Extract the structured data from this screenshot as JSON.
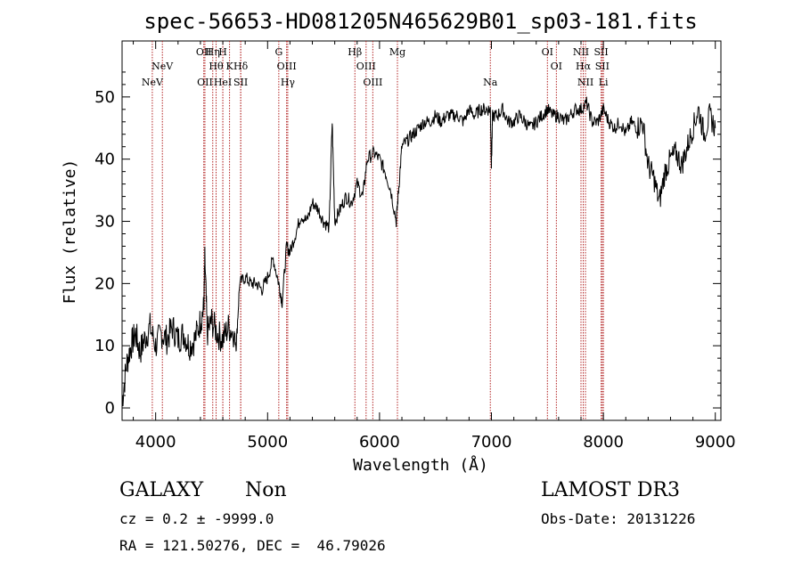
{
  "chart_data": {
    "type": "line",
    "title": "spec-56653-HD081205N465629B01_sp03-181.fits",
    "xlabel": "Wavelength (Å)",
    "ylabel": "Flux (relative)",
    "xlim": [
      3700,
      9050
    ],
    "ylim": [
      -2,
      59
    ],
    "xticks": [
      4000,
      5000,
      6000,
      7000,
      8000,
      9000
    ],
    "yticks": [
      0,
      10,
      20,
      30,
      40,
      50
    ],
    "series": [
      {
        "name": "spectrum",
        "x": [
          3700,
          3740,
          3780,
          3820,
          3860,
          3900,
          3950,
          4000,
          4050,
          4100,
          4150,
          4200,
          4250,
          4300,
          4350,
          4400,
          4430,
          4440,
          4460,
          4500,
          4550,
          4600,
          4650,
          4700,
          4720,
          4750,
          4800,
          4850,
          4900,
          4950,
          5000,
          5050,
          5100,
          5130,
          5170,
          5200,
          5250,
          5300,
          5350,
          5400,
          5450,
          5500,
          5550,
          5577,
          5600,
          5650,
          5700,
          5750,
          5800,
          5850,
          5890,
          5950,
          6000,
          6050,
          6100,
          6150,
          6170,
          6200,
          6250,
          6300,
          6350,
          6400,
          6450,
          6500,
          6550,
          6600,
          6650,
          6700,
          6750,
          6800,
          6850,
          6900,
          6950,
          6990,
          7000,
          7010,
          7050,
          7100,
          7150,
          7200,
          7250,
          7300,
          7350,
          7400,
          7450,
          7500,
          7550,
          7600,
          7650,
          7700,
          7750,
          7800,
          7850,
          7900,
          7950,
          8000,
          8050,
          8100,
          8150,
          8200,
          8250,
          8300,
          8350,
          8400,
          8450,
          8500,
          8550,
          8600,
          8650,
          8700,
          8750,
          8800,
          8850,
          8900,
          8950,
          9000
        ],
        "y": [
          1,
          7,
          10,
          12,
          9,
          11,
          13,
          10,
          12,
          11,
          13,
          11,
          12,
          10,
          11,
          14,
          16,
          24,
          12,
          14,
          12,
          11,
          13,
          12,
          10,
          20,
          21,
          20,
          20,
          19,
          21,
          24,
          20,
          17,
          26,
          25,
          28,
          31,
          30,
          33,
          32,
          30,
          29,
          46,
          30,
          32,
          34,
          33,
          36,
          34,
          40,
          41,
          40,
          38,
          35,
          30,
          35,
          42,
          43,
          44,
          45,
          46,
          46,
          47,
          46,
          47,
          47,
          47,
          46,
          48,
          47,
          48,
          48,
          48,
          39,
          47,
          47,
          48,
          46,
          46,
          47,
          46,
          45,
          46,
          47,
          48,
          47,
          47,
          46,
          47,
          48,
          48,
          49,
          46,
          46,
          48,
          46,
          45,
          46,
          44,
          46,
          45,
          46,
          39,
          37,
          33,
          38,
          40,
          41,
          39,
          42,
          45,
          48,
          44,
          47,
          45
        ]
      }
    ],
    "lines": [
      {
        "label": "NeV",
        "x": 3970,
        "row": 3
      },
      {
        "label": "NeV",
        "x": 4060,
        "row": 2
      },
      {
        "label": "OII",
        "x": 4430,
        "row": 1
      },
      {
        "label": "OII",
        "x": 4440,
        "row": 3
      },
      {
        "label": "Hη",
        "x": 4510,
        "row": 1
      },
      {
        "label": "Hθ",
        "x": 4540,
        "row": 2
      },
      {
        "label": "H",
        "x": 4600,
        "row": 1
      },
      {
        "label": "HeI",
        "x": 4600,
        "row": 3
      },
      {
        "label": "K",
        "x": 4660,
        "row": 2
      },
      {
        "label": "Hδ",
        "x": 4760,
        "row": 2
      },
      {
        "label": "SII",
        "x": 4760,
        "row": 3
      },
      {
        "label": "G",
        "x": 5100,
        "row": 1
      },
      {
        "label": "OIII",
        "x": 5170,
        "row": 2
      },
      {
        "label": "Hγ",
        "x": 5180,
        "row": 3
      },
      {
        "label": "Hβ",
        "x": 5780,
        "row": 1
      },
      {
        "label": "OIII",
        "x": 5880,
        "row": 2
      },
      {
        "label": "OIII",
        "x": 5940,
        "row": 3
      },
      {
        "label": "Mg",
        "x": 6160,
        "row": 1
      },
      {
        "label": "Na",
        "x": 6990,
        "row": 3
      },
      {
        "label": "OI",
        "x": 7500,
        "row": 1
      },
      {
        "label": "OI",
        "x": 7580,
        "row": 2
      },
      {
        "label": "NII",
        "x": 7800,
        "row": 1
      },
      {
        "label": "Hα",
        "x": 7820,
        "row": 2
      },
      {
        "label": "NII",
        "x": 7840,
        "row": 3
      },
      {
        "label": "SII",
        "x": 7980,
        "row": 1
      },
      {
        "label": "SII",
        "x": 7990,
        "row": 2
      },
      {
        "label": "Li",
        "x": 8000,
        "row": 3
      }
    ],
    "colors": {
      "spectrum": "#000000",
      "lines": "#b22222",
      "axes": "#000000"
    }
  },
  "info": {
    "class": "GALAXY",
    "subclass": "Non",
    "survey": "LAMOST DR3",
    "cz": "cz = 0.2 ± -9999.0",
    "obs_date": "Obs-Date: 20131226",
    "coords": "RA = 121.50276, DEC =  46.79026"
  }
}
